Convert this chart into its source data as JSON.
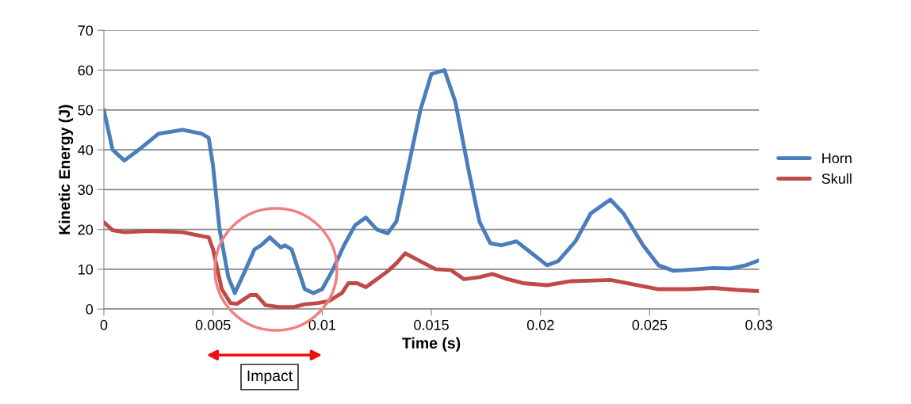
{
  "chart_data": {
    "type": "line",
    "xlabel": "Time (s)",
    "ylabel": "Kinetic Energy (J)",
    "xlim": [
      0,
      0.03
    ],
    "xticks": [
      0,
      0.005,
      0.01,
      0.015,
      0.02,
      0.025,
      0.03
    ],
    "ylim": [
      0,
      70
    ],
    "yticks": [
      0,
      10,
      20,
      30,
      40,
      50,
      60,
      70
    ],
    "grid": "y",
    "legend": "right",
    "marker": "none",
    "line_style": "solid",
    "annotations": [
      "Impact"
    ],
    "series": [
      {
        "name": "Horn",
        "color": "#4a7ebb",
        "x": [
          0,
          0.0004,
          0.00094,
          0.0016,
          0.0025,
          0.0036,
          0.0045,
          0.0048,
          0.005,
          0.0053,
          0.0057,
          0.006,
          0.0065,
          0.0069,
          0.0072,
          0.0076,
          0.0081,
          0.0083,
          0.0086,
          0.0089,
          0.0092,
          0.0096,
          0.01,
          0.0105,
          0.011,
          0.0115,
          0.012,
          0.0125,
          0.013,
          0.0134,
          0.0138,
          0.0145,
          0.015,
          0.0156,
          0.0161,
          0.0167,
          0.0172,
          0.0177,
          0.0182,
          0.0189,
          0.0196,
          0.0203,
          0.0208,
          0.0216,
          0.0223,
          0.0232,
          0.0238,
          0.0247,
          0.0254,
          0.0261,
          0.0272,
          0.0279,
          0.0287,
          0.0294,
          0.03
        ],
        "values": [
          50,
          40,
          37.3,
          40,
          44,
          45,
          44,
          43,
          36,
          20,
          8,
          4,
          10,
          15,
          16,
          18,
          15.5,
          16,
          15,
          10,
          5,
          4,
          5,
          10,
          16,
          21,
          23,
          20,
          19,
          22,
          32,
          50,
          59,
          60,
          52,
          35,
          22,
          16.5,
          16,
          17,
          14,
          11,
          12,
          17,
          24,
          27.5,
          24,
          16,
          11,
          9.6,
          10,
          10.3,
          10.2,
          11,
          12.2
        ]
      },
      {
        "name": "Skull",
        "color": "#be4b48",
        "x": [
          0,
          0.0004,
          0.00094,
          0.0021,
          0.0036,
          0.0045,
          0.0048,
          0.005,
          0.0054,
          0.0058,
          0.0061,
          0.0067,
          0.007,
          0.0074,
          0.008,
          0.0087,
          0.0092,
          0.0098,
          0.0103,
          0.0109,
          0.0112,
          0.0116,
          0.012,
          0.0125,
          0.013,
          0.0134,
          0.0138,
          0.0145,
          0.0152,
          0.0159,
          0.0165,
          0.0172,
          0.0178,
          0.0185,
          0.0192,
          0.0203,
          0.0214,
          0.0232,
          0.0254,
          0.0268,
          0.0279,
          0.029,
          0.03
        ],
        "values": [
          21.8,
          19.8,
          19.3,
          19.6,
          19.3,
          18.3,
          18,
          15,
          5,
          1.5,
          1.3,
          3.5,
          3.5,
          1,
          0.5,
          0.5,
          1.2,
          1.5,
          2,
          4,
          6.5,
          6.5,
          5.5,
          7.5,
          9.5,
          11.5,
          14,
          12,
          10,
          9.8,
          7.5,
          8,
          8.8,
          7.5,
          6.5,
          6,
          7,
          7.3,
          5,
          5,
          5.3,
          4.8,
          4.5
        ]
      }
    ]
  }
}
